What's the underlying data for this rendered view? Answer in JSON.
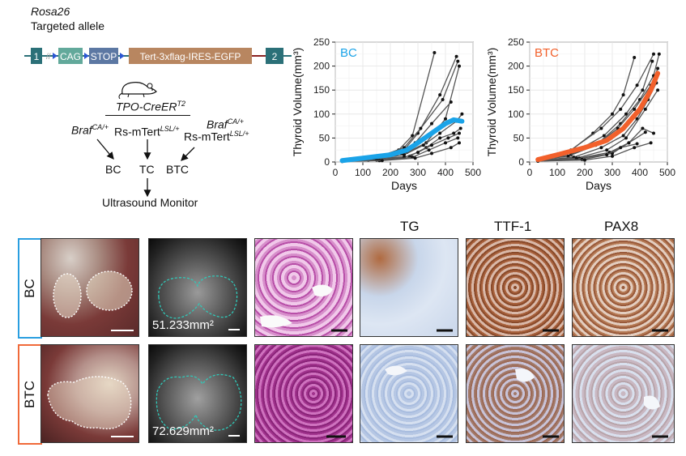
{
  "construct": {
    "locus": "Rosa26",
    "subtitle": "Targeted allele",
    "boxes": [
      "1",
      "CAG",
      "STOP",
      "Tert-3xflag-IRES-EGFP",
      "2"
    ],
    "colors": {
      "exon": "#2b7078",
      "cag": "#62a99b",
      "stop": "#5c78a3",
      "tert": "#b88660",
      "lox": "#2b56d4"
    }
  },
  "scheme": {
    "driver": "TPO-CreER",
    "driver_sup": "T2",
    "left_allele": "Braf",
    "left_sup": "CA/+",
    "middle_allele": "Rs-mTert",
    "middle_sup": "LSL/+",
    "right_allele_1": "Braf",
    "right_sup_1": "CA/+",
    "right_allele_2": "Rs-mTert",
    "right_sup_2": "LSL/+",
    "groups": [
      "BC",
      "TC",
      "BTC"
    ],
    "monitor": "Ultrasound Monitor"
  },
  "chart_data": [
    {
      "type": "line",
      "title": "BC",
      "title_color": "#1aa3e8",
      "trend_color": "#1aa3e8",
      "xlabel": "Days",
      "ylabel": "Thyroid Volume(mm³)",
      "xlim": [
        0,
        500
      ],
      "ylim": [
        0,
        250
      ],
      "xticks": [
        0,
        100,
        200,
        300,
        400,
        500
      ],
      "yticks": [
        0,
        50,
        100,
        150,
        200,
        250
      ],
      "trend": {
        "x": [
          25,
          100,
          200,
          260,
          300,
          350,
          400,
          430,
          460
        ],
        "y": [
          3,
          8,
          15,
          25,
          40,
          60,
          80,
          88,
          85
        ]
      },
      "series": [
        {
          "x": [
            25,
            120,
            230,
            280,
            360
          ],
          "y": [
            2,
            5,
            25,
            55,
            228
          ]
        },
        {
          "x": [
            25,
            130,
            240,
            300,
            380,
            440
          ],
          "y": [
            2,
            6,
            18,
            60,
            140,
            220
          ]
        },
        {
          "x": [
            25,
            140,
            250,
            310,
            390,
            445
          ],
          "y": [
            3,
            7,
            30,
            70,
            130,
            210
          ]
        },
        {
          "x": [
            25,
            150,
            260,
            330,
            400,
            450
          ],
          "y": [
            2,
            8,
            20,
            40,
            90,
            200
          ]
        },
        {
          "x": [
            25,
            120,
            220,
            290,
            350,
            420
          ],
          "y": [
            2,
            4,
            15,
            40,
            80,
            125
          ]
        },
        {
          "x": [
            25,
            130,
            250,
            320,
            380,
            440,
            460
          ],
          "y": [
            2,
            5,
            15,
            35,
            60,
            85,
            100
          ]
        },
        {
          "x": [
            25,
            140,
            270,
            330,
            380,
            430,
            455
          ],
          "y": [
            3,
            6,
            12,
            30,
            50,
            60,
            70
          ]
        },
        {
          "x": [
            25,
            150,
            250,
            300,
            350,
            410,
            450
          ],
          "y": [
            2,
            4,
            10,
            20,
            35,
            50,
            60
          ]
        },
        {
          "x": [
            25,
            160,
            280,
            340,
            400,
            445
          ],
          "y": [
            2,
            3,
            10,
            25,
            40,
            50
          ]
        },
        {
          "x": [
            25,
            170,
            290,
            350,
            420,
            450
          ],
          "y": [
            1,
            3,
            8,
            18,
            30,
            40
          ]
        }
      ]
    },
    {
      "type": "line",
      "title": "BTC",
      "title_color": "#f2602b",
      "trend_color": "#f2602b",
      "xlabel": "Days",
      "ylabel": "Thyroid Volume(mm³)",
      "xlim": [
        0,
        500
      ],
      "ylim": [
        0,
        250
      ],
      "xticks": [
        0,
        100,
        200,
        300,
        400,
        500
      ],
      "yticks": [
        0,
        50,
        100,
        150,
        200,
        250
      ],
      "trend": {
        "x": [
          30,
          100,
          200,
          280,
          340,
          400,
          440,
          465
        ],
        "y": [
          5,
          15,
          30,
          45,
          70,
          110,
          150,
          185
        ]
      },
      "series": [
        {
          "x": [
            30,
            140,
            230,
            300,
            340,
            380
          ],
          "y": [
            5,
            20,
            60,
            100,
            140,
            218
          ]
        },
        {
          "x": [
            30,
            150,
            260,
            330,
            390,
            450
          ],
          "y": [
            5,
            25,
            70,
            110,
            160,
            225
          ]
        },
        {
          "x": [
            30,
            160,
            270,
            350,
            410,
            445
          ],
          "y": [
            5,
            20,
            55,
            100,
            150,
            210
          ]
        },
        {
          "x": [
            30,
            150,
            250,
            330,
            400,
            450,
            470
          ],
          "y": [
            4,
            15,
            40,
            80,
            130,
            180,
            225
          ]
        },
        {
          "x": [
            30,
            140,
            240,
            320,
            380,
            440,
            465
          ],
          "y": [
            4,
            12,
            35,
            70,
            110,
            160,
            195
          ]
        },
        {
          "x": [
            30,
            160,
            260,
            340,
            390,
            430,
            460
          ],
          "y": [
            3,
            10,
            30,
            55,
            90,
            130,
            165
          ]
        },
        {
          "x": [
            30,
            170,
            280,
            350,
            420,
            465
          ],
          "y": [
            3,
            8,
            25,
            50,
            110,
            150
          ]
        },
        {
          "x": [
            30,
            180,
            290,
            360,
            410,
            450
          ],
          "y": [
            3,
            8,
            20,
            40,
            70,
            60
          ]
        },
        {
          "x": [
            30,
            170,
            300,
            360,
            420
          ],
          "y": [
            3,
            6,
            18,
            40,
            62
          ]
        },
        {
          "x": [
            30,
            190,
            280,
            330,
            390
          ],
          "y": [
            2,
            5,
            15,
            30,
            38
          ]
        },
        {
          "x": [
            30,
            200,
            300,
            380,
            440
          ],
          "y": [
            2,
            4,
            12,
            30,
            40
          ]
        }
      ]
    }
  ],
  "panels": {
    "column_headers": [
      "TG",
      "TTF-1",
      "PAX8"
    ],
    "rows": [
      {
        "label": "BC",
        "color": "#2a9ee0",
        "ultrasound_area": "51.233mm²"
      },
      {
        "label": "BTC",
        "color": "#f06a3a",
        "ultrasound_area": "72.629mm²"
      }
    ]
  }
}
